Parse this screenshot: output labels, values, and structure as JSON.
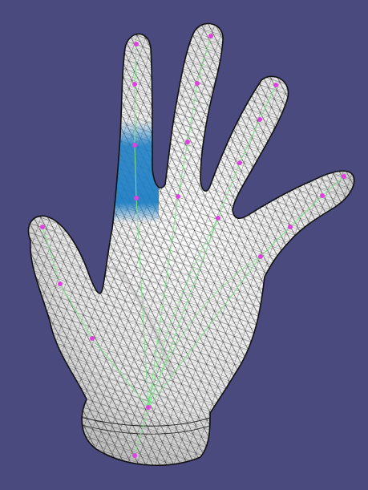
{
  "viewport": {
    "background": "#4a4a7e",
    "subject": "hand-mesh"
  },
  "mesh": {
    "fill": "#eeeeee",
    "wire_color": "#1a1a1a",
    "highlight_color": "#1f7fc4",
    "highlighted_region": "index-finger-base"
  },
  "skeleton": {
    "bone_color": "#7ee08a",
    "joint_color": "#e040e0",
    "joint_count": 21
  }
}
